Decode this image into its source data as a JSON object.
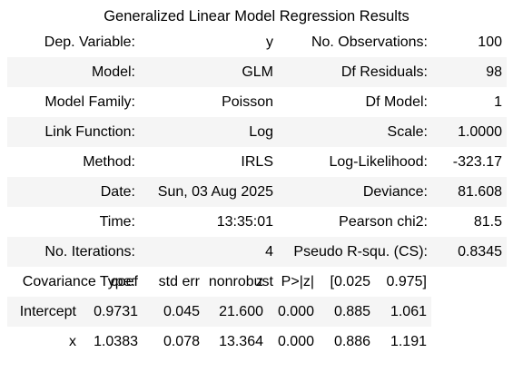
{
  "caption": "Generalized Linear Model Regression Results",
  "summary_rows": [
    {
      "l1": "Dep. Variable:",
      "v1": "y",
      "l2": "No. Observations:",
      "v2": "100"
    },
    {
      "l1": "Model:",
      "v1": "GLM",
      "l2": "Df Residuals:",
      "v2": "98"
    },
    {
      "l1": "Model Family:",
      "v1": "Poisson",
      "l2": "Df Model:",
      "v2": "1"
    },
    {
      "l1": "Link Function:",
      "v1": "Log",
      "l2": "Scale:",
      "v2": "1.0000"
    },
    {
      "l1": "Method:",
      "v1": "IRLS",
      "l2": "Log-Likelihood:",
      "v2": "-323.17"
    },
    {
      "l1": "Date:",
      "v1": "Sun, 03 Aug 2025",
      "l2": "Deviance:",
      "v2": "81.608"
    },
    {
      "l1": "Time:",
      "v1": "13:35:01",
      "l2": "Pearson chi2:",
      "v2": "81.5"
    },
    {
      "l1": "No. Iterations:",
      "v1": "4",
      "l2": "Pseudo R-squ. (CS):",
      "v2": "0.8345"
    },
    {
      "l1": "Covariance Type:",
      "v1": "nonrobust",
      "l2": "",
      "v2": ""
    }
  ],
  "coef_table": {
    "headers": [
      "",
      "coef",
      "std err",
      "z",
      "P>|z|",
      "[0.025",
      "0.975]"
    ],
    "rows": [
      [
        "Intercept",
        "0.9731",
        "0.045",
        "21.600",
        "0.000",
        "0.885",
        "1.061"
      ],
      [
        "x",
        "1.0383",
        "0.078",
        "13.364",
        "0.000",
        "0.886",
        "1.191"
      ]
    ]
  }
}
